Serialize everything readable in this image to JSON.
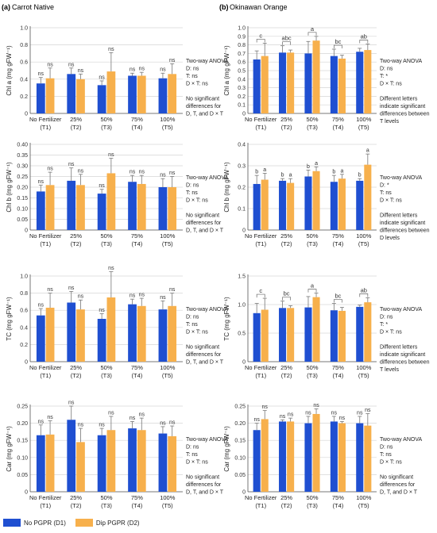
{
  "colors": {
    "d1": "#1f4fd1",
    "d2": "#f7b04c"
  },
  "legend": {
    "d1": "No PGPR (D1)",
    "d2": "Dip PGPR (D2)"
  },
  "panels": [
    {
      "letter": "(a)",
      "title": "Carrot Native"
    },
    {
      "letter": "(b)",
      "title": "Okinawan Orange"
    }
  ],
  "chart_data": [
    {
      "type": "bar",
      "panel": "a",
      "ylabel": "Chl a (mg gFW⁻¹)",
      "ylim": [
        0,
        1.0
      ],
      "yticks": [
        "0",
        "0.2",
        "0.4",
        "0.6",
        "0.8",
        "1.0"
      ],
      "categories": [
        "No Fertilizer\n(T1)",
        "25%\n(T2)",
        "50%\n(T3)",
        "75%\n(T4)",
        "100%\n(T5)"
      ],
      "series": [
        {
          "name": "No PGPR (D1)",
          "values": [
            0.35,
            0.46,
            0.33,
            0.44,
            0.41
          ],
          "errors": [
            0.07,
            0.07,
            0.05,
            0.03,
            0.06
          ],
          "labels": [
            "ns",
            "ns",
            "ns",
            "ns",
            "ns"
          ]
        },
        {
          "name": "Dip PGPR (D2)",
          "values": [
            0.41,
            0.4,
            0.49,
            0.44,
            0.46
          ],
          "errors": [
            0.12,
            0.06,
            0.22,
            0.04,
            0.12
          ],
          "labels": [
            "ns",
            "ns",
            "ns",
            "ns",
            "ns"
          ]
        }
      ],
      "group_labels": [],
      "annotation": [
        "Two-way ANOVA",
        "D: ns",
        "T: ns",
        "D × T: ns",
        "",
        "No significant",
        "differences for",
        "D, T, and D × T"
      ]
    },
    {
      "type": "bar",
      "panel": "b",
      "ylabel": "Chl a (mg gFW⁻¹)",
      "ylim": [
        0,
        1.0
      ],
      "yticks": [
        "0",
        "0.1",
        "0.2",
        "0.3",
        "0.4",
        "0.5",
        "0.6",
        "0.7",
        "0.8",
        "0.9",
        "1.0"
      ],
      "categories": [
        "No Fertilizer\n(T1)",
        "25%\n(T2)",
        "50%\n(T3)",
        "75%\n(T4)",
        "100%\n(T5)"
      ],
      "series": [
        {
          "name": "No PGPR (D1)",
          "values": [
            0.63,
            0.71,
            0.7,
            0.67,
            0.72
          ],
          "errors": [
            0.1,
            0.08,
            0.14,
            0.08,
            0.04
          ],
          "labels": [
            "",
            "",
            "",
            "",
            ""
          ]
        },
        {
          "name": "Dip PGPR (D2)",
          "values": [
            0.67,
            0.71,
            0.85,
            0.64,
            0.74
          ],
          "errors": [
            0.15,
            0.03,
            0.05,
            0.04,
            0.07
          ],
          "labels": [
            "",
            "",
            "",
            "",
            ""
          ]
        }
      ],
      "group_labels": [
        "c",
        "abc",
        "a",
        "bc",
        "ab"
      ],
      "annotation": [
        "Two-way ANOVA",
        "D: ns",
        "T: *",
        "D × T: ns",
        "",
        "Different letters",
        "indicate significant",
        "differences between",
        "T levels"
      ]
    },
    {
      "type": "bar",
      "panel": "a",
      "ylabel": "Chl b (mg gFW⁻¹)",
      "ylim": [
        0,
        0.4
      ],
      "yticks": [
        "0",
        "0.05",
        "0.10",
        "0.15",
        "0.20",
        "0.25",
        "0.30",
        "0.35",
        "0.40"
      ],
      "categories": [
        "No Fertilizer\n(T1)",
        "25%\n(T2)",
        "50%\n(T3)",
        "75%\n(T4)",
        "100%\n(T5)"
      ],
      "series": [
        {
          "name": "No PGPR (D1)",
          "values": [
            0.18,
            0.23,
            0.17,
            0.225,
            0.2
          ],
          "errors": [
            0.03,
            0.06,
            0.02,
            0.03,
            0.04
          ],
          "labels": [
            "ns",
            "ns",
            "ns",
            "ns",
            "ns"
          ]
        },
        {
          "name": "Dip PGPR (D2)",
          "values": [
            0.21,
            0.21,
            0.265,
            0.215,
            0.2
          ],
          "errors": [
            0.06,
            0.05,
            0.07,
            0.04,
            0.05
          ],
          "labels": [
            "ns",
            "ns",
            "ns",
            "ns",
            "ns"
          ]
        }
      ],
      "group_labels": [],
      "annotation": [
        "Two-way ANOVA",
        "D: ns",
        "T: ns",
        "D × T: ns",
        "",
        "No significant",
        "differences for",
        "D, T, and D × T"
      ]
    },
    {
      "type": "bar",
      "panel": "b",
      "ylabel": "Chl b (mg gFW⁻¹)",
      "ylim": [
        0,
        0.4
      ],
      "yticks": [
        "0",
        "0.1",
        "0.2",
        "0.3",
        "0.4"
      ],
      "categories": [
        "No Fertilizer\n(T1)",
        "25%\n(T2)",
        "50%\n(T3)",
        "75%\n(T4)",
        "100%\n(T5)"
      ],
      "series": [
        {
          "name": "No PGPR (D1)",
          "values": [
            0.215,
            0.23,
            0.25,
            0.225,
            0.23
          ],
          "errors": [
            0.04,
            0.01,
            0.03,
            0.03,
            0.01
          ],
          "labels": [
            "b",
            "b",
            "b",
            "b",
            "b"
          ]
        },
        {
          "name": "Dip PGPR (D2)",
          "values": [
            0.235,
            0.22,
            0.275,
            0.24,
            0.305
          ],
          "errors": [
            0.03,
            0.02,
            0.02,
            0.02,
            0.05
          ],
          "labels": [
            "a",
            "a",
            "a",
            "a",
            "a"
          ]
        }
      ],
      "group_labels": [],
      "annotation": [
        "Two-way ANOVA",
        "D: *",
        "T: ns",
        "D × T: ns",
        "",
        "Different letters",
        "indicate significant",
        "differences between",
        "D levels"
      ]
    },
    {
      "type": "bar",
      "panel": "a",
      "ylabel": "TC (mg gFW⁻¹)",
      "ylim": [
        0,
        1.0
      ],
      "yticks": [
        "0",
        "0.2",
        "0.4",
        "0.6",
        "0.8",
        "1.0"
      ],
      "categories": [
        "No Fertilizer\n(T1)",
        "25%\n(T2)",
        "50%\n(T3)",
        "75%\n(T4)",
        "100%\n(T5)"
      ],
      "series": [
        {
          "name": "No PGPR (D1)",
          "values": [
            0.54,
            0.69,
            0.5,
            0.67,
            0.61
          ],
          "errors": [
            0.08,
            0.13,
            0.06,
            0.06,
            0.1
          ],
          "labels": [
            "ns",
            "ns",
            "ns",
            "ns",
            "ns"
          ]
        },
        {
          "name": "Dip PGPR (D2)",
          "values": [
            0.63,
            0.61,
            0.75,
            0.65,
            0.65
          ],
          "errors": [
            0.17,
            0.11,
            0.3,
            0.09,
            0.15
          ],
          "labels": [
            "ns",
            "ns",
            "ns",
            "ns",
            "ns"
          ]
        }
      ],
      "group_labels": [],
      "annotation": [
        "Two-way ANOVA",
        "D: ns",
        "T: ns",
        "D × T: ns",
        "",
        "No significant",
        "differences for",
        "D, T, and D × T"
      ]
    },
    {
      "type": "bar",
      "panel": "b",
      "ylabel": "TC (mg gFW⁻¹)",
      "ylim": [
        0,
        1.5
      ],
      "yticks": [
        "0",
        "0.5",
        "1.0",
        "1.5"
      ],
      "categories": [
        "No Fertilizer\n(T1)",
        "25%\n(T2)",
        "50%\n(T3)",
        "75%\n(T4)",
        "100%\n(T5)"
      ],
      "series": [
        {
          "name": "No PGPR (D1)",
          "values": [
            0.85,
            0.94,
            0.95,
            0.9,
            0.96
          ],
          "errors": [
            0.17,
            0.12,
            0.19,
            0.12,
            0.03
          ],
          "labels": [
            "",
            "",
            "",
            "",
            ""
          ]
        },
        {
          "name": "Dip PGPR (D2)",
          "values": [
            0.91,
            0.94,
            1.13,
            0.89,
            1.04
          ],
          "errors": [
            0.2,
            0.04,
            0.07,
            0.06,
            0.08
          ],
          "labels": [
            "",
            "",
            "",
            "",
            ""
          ]
        }
      ],
      "group_labels": [
        "c",
        "bc",
        "a",
        "bc",
        "ab"
      ],
      "annotation": [
        "Two-way ANOVA",
        "D: ns",
        "T: *",
        "D × T: ns",
        "",
        "Different letters",
        "indicate significant",
        "differences between",
        "T levels"
      ]
    },
    {
      "type": "bar",
      "panel": "a",
      "ylabel": "Car (mg gFW⁻¹)",
      "ylim": [
        0,
        0.25
      ],
      "yticks": [
        "0",
        "0.05",
        "0.10",
        "0.15",
        "0.20",
        "0.25"
      ],
      "categories": [
        "No Fertilizer\n(T1)",
        "25%\n(T2)",
        "50%\n(T3)",
        "75%\n(T4)",
        "100%\n(T5)"
      ],
      "series": [
        {
          "name": "No PGPR (D1)",
          "values": [
            0.165,
            0.21,
            0.165,
            0.185,
            0.17
          ],
          "errors": [
            0.03,
            0.04,
            0.02,
            0.02,
            0.02
          ],
          "labels": [
            "ns",
            "ns",
            "ns",
            "ns",
            "ns"
          ]
        },
        {
          "name": "Dip PGPR (D2)",
          "values": [
            0.167,
            0.145,
            0.18,
            0.18,
            0.162
          ],
          "errors": [
            0.04,
            0.04,
            0.04,
            0.035,
            0.03
          ],
          "labels": [
            "ns",
            "ns",
            "ns",
            "ns",
            "ns"
          ]
        }
      ],
      "group_labels": [],
      "annotation": [
        "Two-way ANOVA",
        "D: ns",
        "T: ns",
        "D × T: ns",
        "",
        "No significant",
        "differences for",
        "D, T, and D × T"
      ]
    },
    {
      "type": "bar",
      "panel": "b",
      "ylabel": "Car (mg gFW⁻¹)",
      "ylim": [
        0,
        0.25
      ],
      "yticks": [
        "0",
        "0.05",
        "0.10",
        "0.15",
        "0.20",
        "0.25"
      ],
      "categories": [
        "No Fertilizer\n(T1)",
        "25%\n(T2)",
        "50%\n(T3)",
        "75%\n(T4)",
        "100%\n(T5)"
      ],
      "series": [
        {
          "name": "No PGPR (D1)",
          "values": [
            0.18,
            0.205,
            0.2,
            0.205,
            0.2
          ],
          "errors": [
            0.02,
            0.005,
            0.02,
            0.015,
            0.02
          ],
          "labels": [
            "ns",
            "ns",
            "ns",
            "ns",
            "ns"
          ]
        },
        {
          "name": "Dip PGPR (D2)",
          "values": [
            0.212,
            0.205,
            0.227,
            0.2,
            0.193
          ],
          "errors": [
            0.025,
            0.01,
            0.015,
            0.005,
            0.035
          ],
          "labels": [
            "ns",
            "ns",
            "ns",
            "ns",
            "ns"
          ]
        }
      ],
      "group_labels": [],
      "annotation": [
        "Two-way ANOVA",
        "D: ns",
        "T: ns",
        "D × T: ns",
        "",
        "No significant",
        "differences for",
        "D, T, and D × T"
      ]
    }
  ]
}
